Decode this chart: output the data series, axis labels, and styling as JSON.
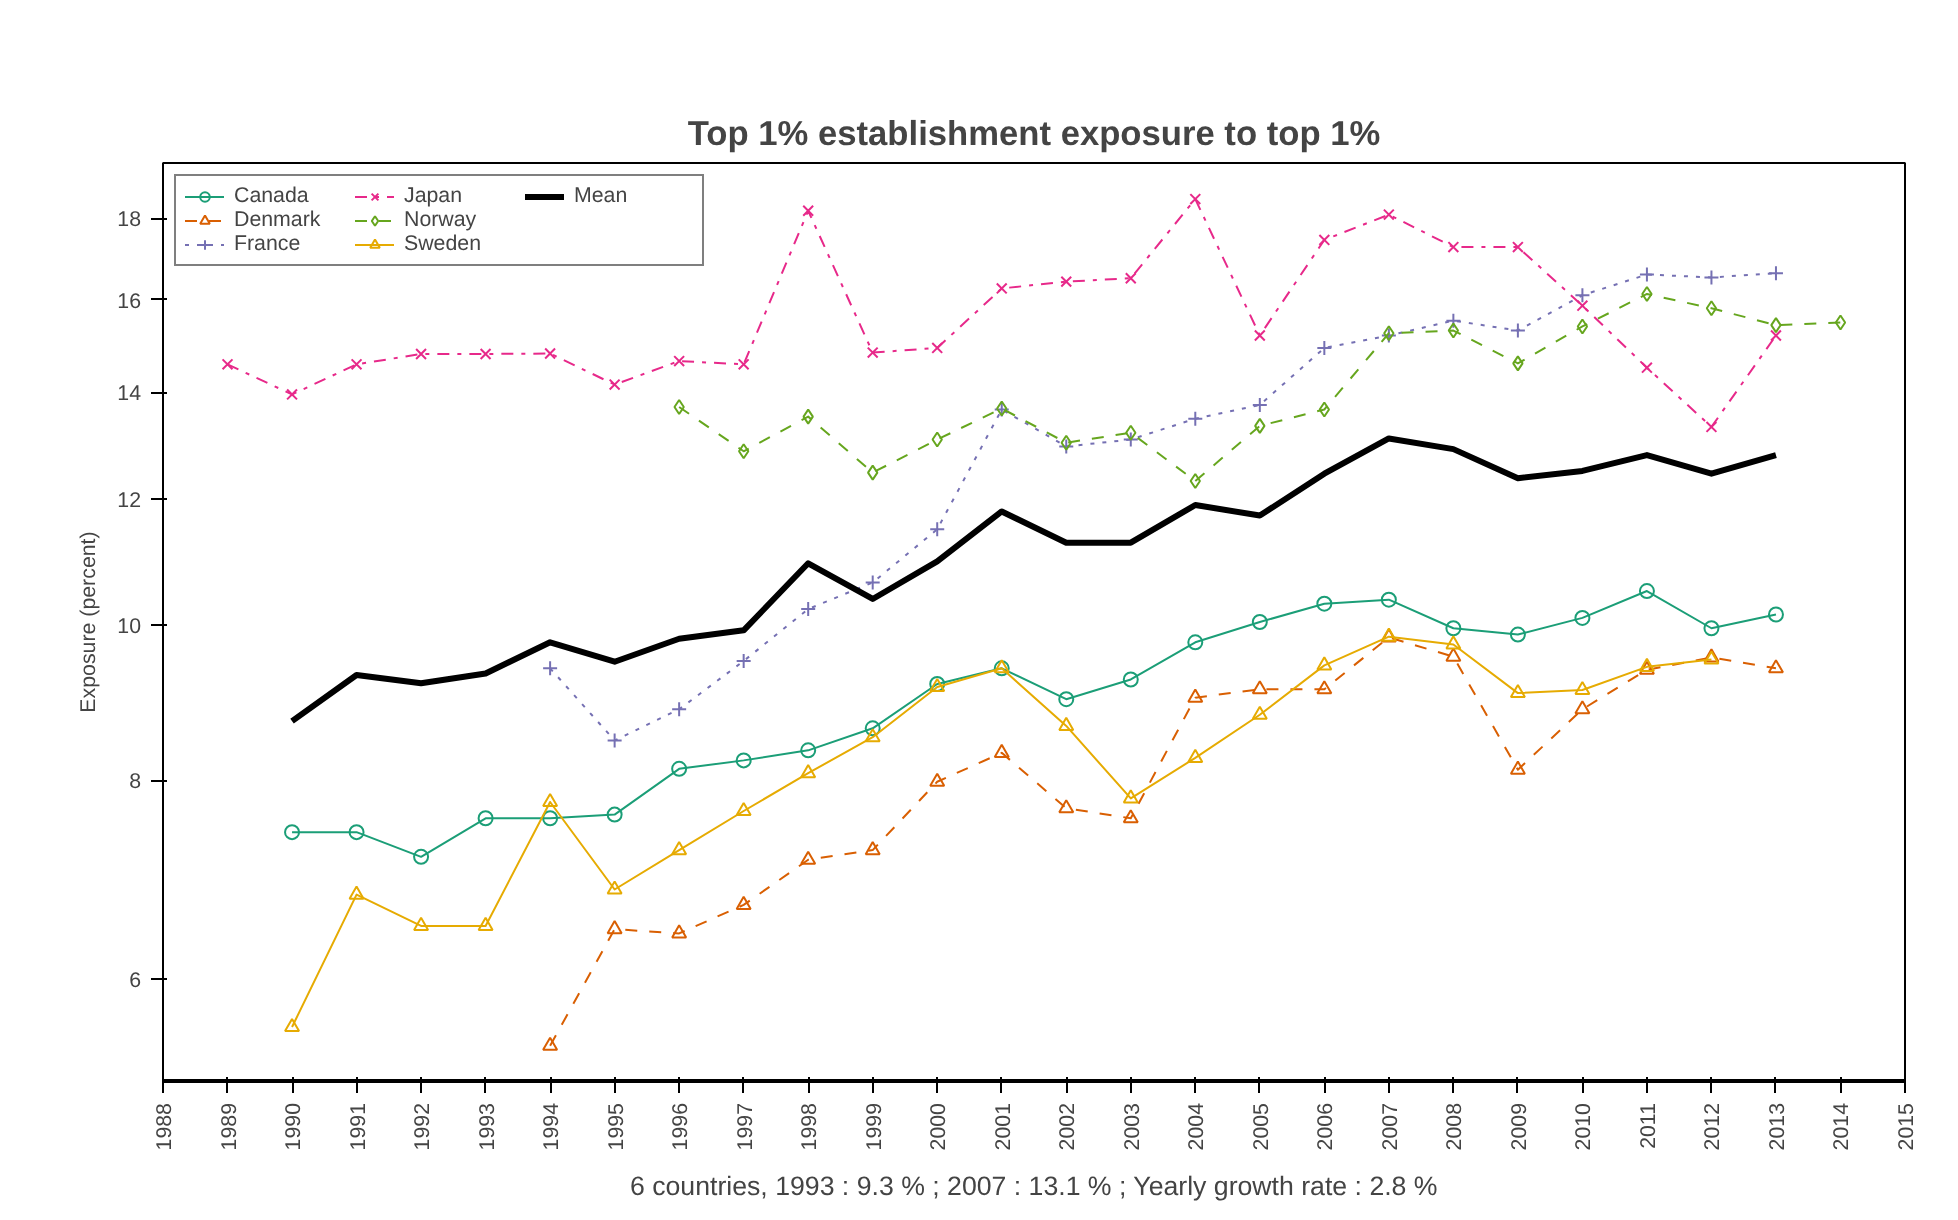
{
  "chart_data": {
    "type": "line",
    "title": "Top 1% establishment exposure to top 1%",
    "ylabel": "Exposure (percent)",
    "annotations": [
      "6 countries, 1993 : 9.3 % ; 2007 : 13.1 % ; Yearly growth rate : 2.8 %"
    ],
    "x": [
      1989,
      1990,
      1991,
      1992,
      1993,
      1994,
      1995,
      1996,
      1997,
      1998,
      1999,
      2000,
      2001,
      2002,
      2003,
      2004,
      2005,
      2006,
      2007,
      2008,
      2009,
      2010,
      2011,
      2012,
      2013,
      2014
    ],
    "xlim": [
      1988,
      2015
    ],
    "xticks": [
      1988,
      1989,
      1990,
      1991,
      1992,
      1993,
      1994,
      1995,
      1996,
      1997,
      1998,
      1999,
      2000,
      2001,
      2002,
      2003,
      2004,
      2005,
      2006,
      2007,
      2008,
      2009,
      2010,
      2011,
      2012,
      2013,
      2014,
      2015
    ],
    "ylim": [
      5.18,
      19.5
    ],
    "yticks": [
      6,
      8,
      10,
      12,
      14,
      16,
      18
    ],
    "log": true,
    "grid": false,
    "legend": "top left",
    "series": [
      {
        "name": "Canada",
        "color": "#1b9e77",
        "marker": "circle",
        "line_style": "solid",
        "values": [
          null,
          7.42,
          7.42,
          7.16,
          7.57,
          7.57,
          7.61,
          8.13,
          8.23,
          8.35,
          8.62,
          9.19,
          9.4,
          8.99,
          9.25,
          9.76,
          10.05,
          10.32,
          10.38,
          9.96,
          9.87,
          10.11,
          10.51,
          9.96,
          10.16,
          null
        ]
      },
      {
        "name": "Denmark",
        "color": "#d95f02",
        "marker": "triangle",
        "line_style": "dashed",
        "values": [
          null,
          null,
          null,
          null,
          null,
          5.45,
          6.45,
          6.41,
          6.68,
          7.13,
          7.23,
          7.98,
          8.32,
          7.68,
          7.57,
          9.01,
          9.12,
          9.12,
          9.83,
          9.56,
          8.12,
          8.86,
          9.38,
          9.55,
          9.4,
          null
        ]
      },
      {
        "name": "France",
        "color": "#7570b3",
        "marker": "cross",
        "line_style": "dotted",
        "values": [
          null,
          null,
          null,
          null,
          null,
          9.4,
          8.47,
          8.86,
          9.5,
          10.24,
          10.64,
          11.49,
          13.66,
          12.95,
          13.08,
          13.48,
          13.75,
          14.93,
          15.2,
          15.53,
          15.31,
          16.11,
          16.6,
          16.53,
          16.63,
          null
        ]
      },
      {
        "name": "Japan",
        "color": "#e7298a",
        "marker": "x",
        "line_style": "dashdot",
        "values": [
          14.58,
          13.96,
          14.58,
          14.8,
          14.8,
          14.81,
          14.16,
          14.65,
          14.58,
          18.2,
          14.83,
          14.93,
          16.27,
          16.43,
          16.51,
          18.51,
          15.2,
          17.45,
          18.1,
          17.27,
          17.27,
          15.87,
          14.51,
          13.32,
          15.2,
          null
        ]
      },
      {
        "name": "Norway",
        "color": "#66a61e",
        "marker": "diamond",
        "line_style": "dashed",
        "values": [
          null,
          null,
          null,
          null,
          null,
          null,
          null,
          13.71,
          12.86,
          13.52,
          12.47,
          13.08,
          13.68,
          13.02,
          13.21,
          12.32,
          13.34,
          13.66,
          15.25,
          15.31,
          14.6,
          15.4,
          16.14,
          15.81,
          15.43,
          15.49
        ]
      },
      {
        "name": "Sweden",
        "color": "#e6ab02",
        "marker": "triangle",
        "line_style": "solid",
        "values": [
          null,
          5.6,
          6.78,
          6.48,
          6.48,
          7.75,
          6.83,
          7.23,
          7.65,
          8.08,
          8.51,
          9.15,
          9.4,
          8.65,
          7.79,
          8.26,
          8.79,
          9.44,
          9.84,
          9.73,
          9.07,
          9.11,
          9.42,
          9.52,
          null,
          null
        ]
      },
      {
        "name": "Mean",
        "color": "#000000",
        "marker": "none",
        "line_style": "solid",
        "values": [
          null,
          8.71,
          9.31,
          9.2,
          9.33,
          9.76,
          9.49,
          9.81,
          9.93,
          10.94,
          10.39,
          10.97,
          11.79,
          11.27,
          11.27,
          11.9,
          11.72,
          12.45,
          13.1,
          12.9,
          12.37,
          12.5,
          12.79,
          12.45,
          12.79,
          null
        ]
      }
    ]
  }
}
